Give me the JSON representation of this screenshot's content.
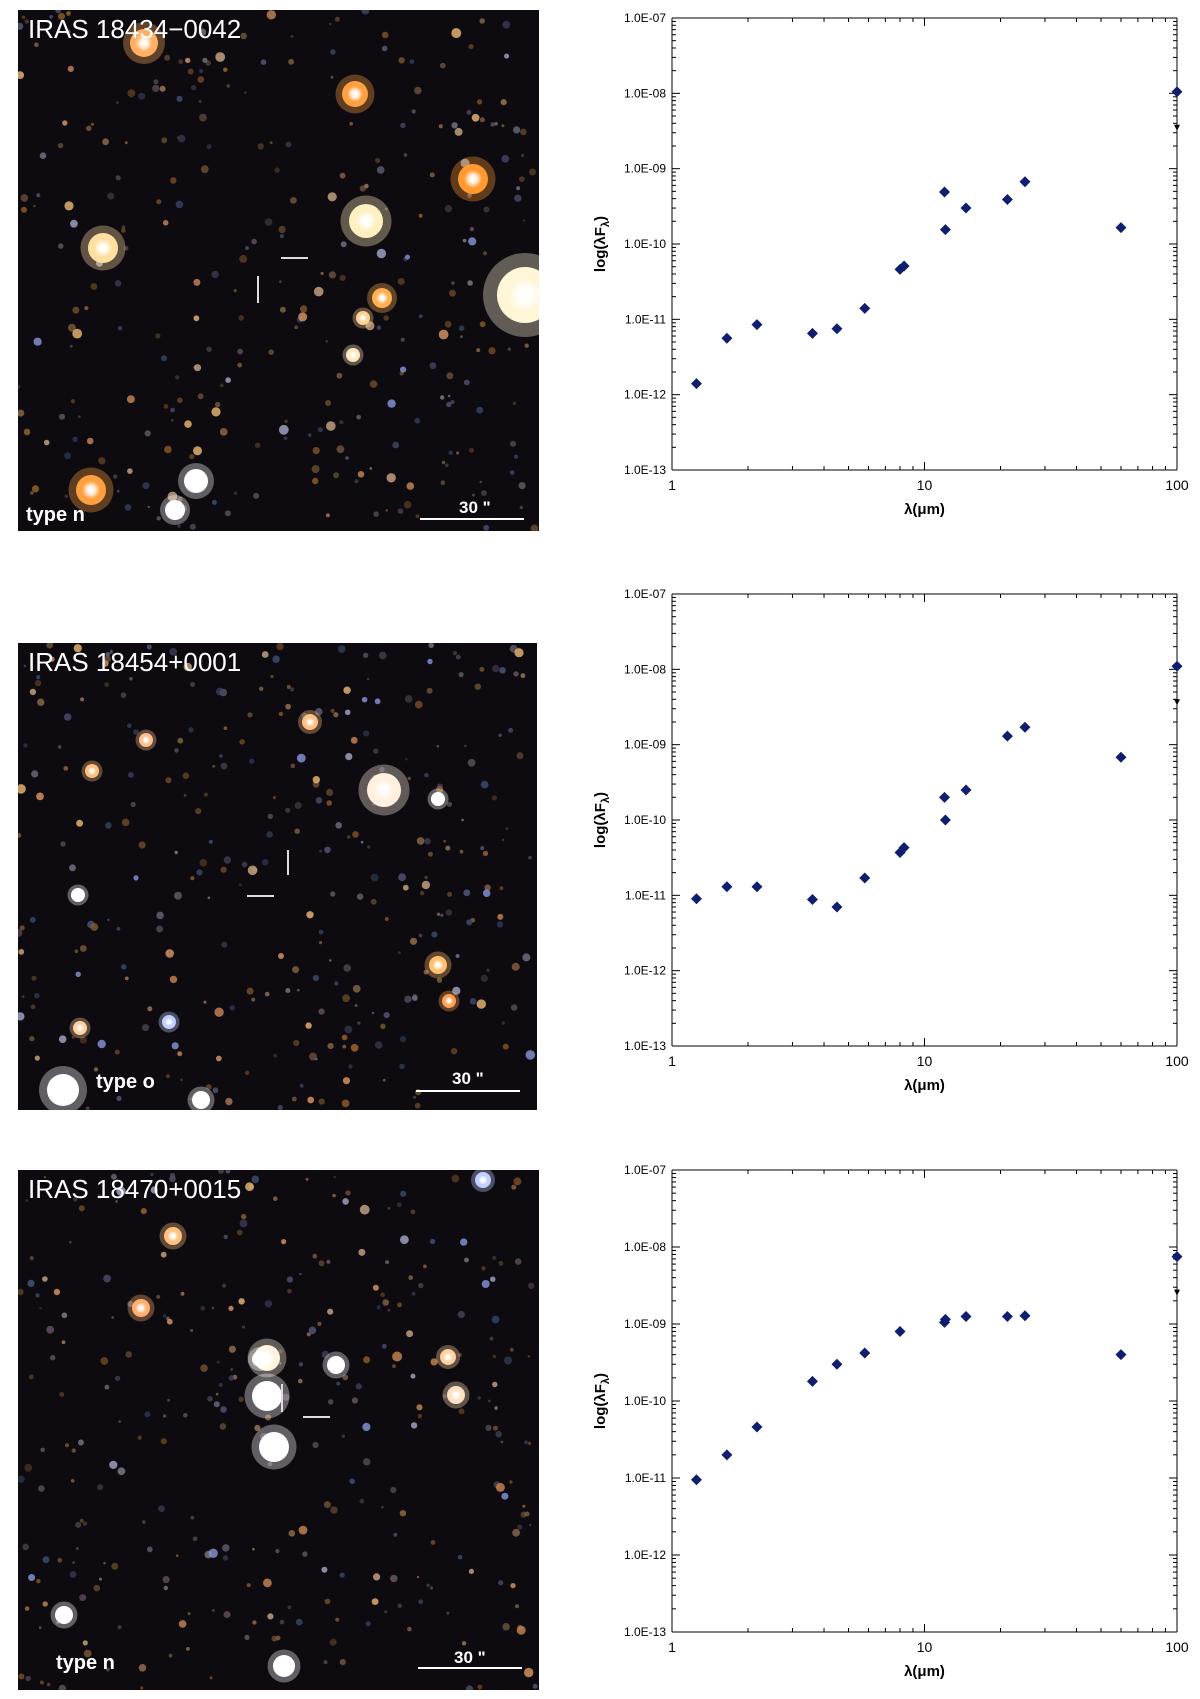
{
  "colors": {
    "marker": "#0f1f6e",
    "axis": "#000000",
    "sky_background": "#0d0a10"
  },
  "panels": [
    {
      "sky": {
        "title": "IRAS 18434−0042",
        "type_label": "type n",
        "scale_label": "30 \""
      },
      "chart_data": {
        "type": "scatter",
        "xlabel": "λ(μm)",
        "ylabel_main": "log(λF",
        "ylabel_sub": "λ",
        "ylabel_end": ")",
        "x_scale": "log",
        "y_scale": "log",
        "xlim": [
          1,
          100
        ],
        "ylim": [
          1e-13,
          1e-07
        ],
        "x_ticks": [
          "1",
          "10",
          "100"
        ],
        "y_ticks": [
          "1.0E-13",
          "1.0E-12",
          "1.0E-11",
          "1.0E-10",
          "1.0E-09",
          "1.0E-08",
          "1.0E-07"
        ],
        "points": [
          {
            "x": 1.25,
            "y": 1.4e-12
          },
          {
            "x": 1.65,
            "y": 5.6e-12
          },
          {
            "x": 2.17,
            "y": 8.5e-12
          },
          {
            "x": 3.6,
            "y": 6.5e-12
          },
          {
            "x": 4.5,
            "y": 7.5e-12
          },
          {
            "x": 5.8,
            "y": 1.4e-11
          },
          {
            "x": 8.0,
            "y": 4.6e-11
          },
          {
            "x": 8.3,
            "y": 5.1e-11
          },
          {
            "x": 12.0,
            "y": 4.9e-10
          },
          {
            "x": 12.1,
            "y": 1.55e-10
          },
          {
            "x": 14.6,
            "y": 3e-10
          },
          {
            "x": 21.3,
            "y": 3.9e-10
          },
          {
            "x": 25.0,
            "y": 6.7e-10
          },
          {
            "x": 60.0,
            "y": 1.65e-10
          },
          {
            "x": 100.0,
            "y": 1.05e-08,
            "upper_limit": true
          }
        ]
      }
    },
    {
      "sky": {
        "title": "IRAS 18454+0001",
        "type_label": "type o",
        "scale_label": "30 \""
      },
      "chart_data": {
        "type": "scatter",
        "xlabel": "λ(μm)",
        "ylabel_main": "log(λF",
        "ylabel_sub": "λ",
        "ylabel_end": ")",
        "x_scale": "log",
        "y_scale": "log",
        "xlim": [
          1,
          100
        ],
        "ylim": [
          1e-13,
          1e-07
        ],
        "x_ticks": [
          "1",
          "10",
          "100"
        ],
        "y_ticks": [
          "1.0E-13",
          "1.0E-12",
          "1.0E-11",
          "1.0E-10",
          "1.0E-09",
          "1.0E-08",
          "1.0E-07"
        ],
        "points": [
          {
            "x": 1.25,
            "y": 9e-12
          },
          {
            "x": 1.65,
            "y": 1.3e-11
          },
          {
            "x": 2.17,
            "y": 1.3e-11
          },
          {
            "x": 3.6,
            "y": 8.8e-12
          },
          {
            "x": 4.5,
            "y": 7e-12
          },
          {
            "x": 5.8,
            "y": 1.7e-11
          },
          {
            "x": 8.0,
            "y": 3.7e-11
          },
          {
            "x": 8.3,
            "y": 4.3e-11
          },
          {
            "x": 12.0,
            "y": 2e-10
          },
          {
            "x": 12.1,
            "y": 1e-10
          },
          {
            "x": 14.6,
            "y": 2.5e-10
          },
          {
            "x": 21.3,
            "y": 1.3e-09
          },
          {
            "x": 25.0,
            "y": 1.7e-09
          },
          {
            "x": 60.0,
            "y": 6.8e-10
          },
          {
            "x": 100.0,
            "y": 1.1e-08,
            "upper_limit": true
          }
        ]
      }
    },
    {
      "sky": {
        "title": "IRAS 18470+0015",
        "type_label": "type n",
        "scale_label": "30 \""
      },
      "chart_data": {
        "type": "scatter",
        "xlabel": "λ(μm)",
        "ylabel_main": "log(λF",
        "ylabel_sub": "λ",
        "ylabel_end": ")",
        "x_scale": "log",
        "y_scale": "log",
        "xlim": [
          1,
          100
        ],
        "ylim": [
          1e-13,
          1e-07
        ],
        "x_ticks": [
          "1",
          "10",
          "100"
        ],
        "y_ticks": [
          "1.0E-13",
          "1.0E-12",
          "1.0E-11",
          "1.0E-10",
          "1.0E-09",
          "1.0E-08",
          "1.0E-07"
        ],
        "points": [
          {
            "x": 1.25,
            "y": 9.5e-12
          },
          {
            "x": 1.65,
            "y": 2e-11
          },
          {
            "x": 2.17,
            "y": 4.6e-11
          },
          {
            "x": 3.6,
            "y": 1.8e-10
          },
          {
            "x": 4.5,
            "y": 3e-10
          },
          {
            "x": 5.8,
            "y": 4.2e-10
          },
          {
            "x": 8.0,
            "y": 8e-10
          },
          {
            "x": 12.0,
            "y": 1.05e-09
          },
          {
            "x": 12.1,
            "y": 1.15e-09
          },
          {
            "x": 14.6,
            "y": 1.25e-09
          },
          {
            "x": 21.3,
            "y": 1.25e-09
          },
          {
            "x": 25.0,
            "y": 1.28e-09
          },
          {
            "x": 60.0,
            "y": 4e-10
          },
          {
            "x": 100.0,
            "y": 7.5e-09,
            "upper_limit": true
          }
        ]
      }
    }
  ]
}
